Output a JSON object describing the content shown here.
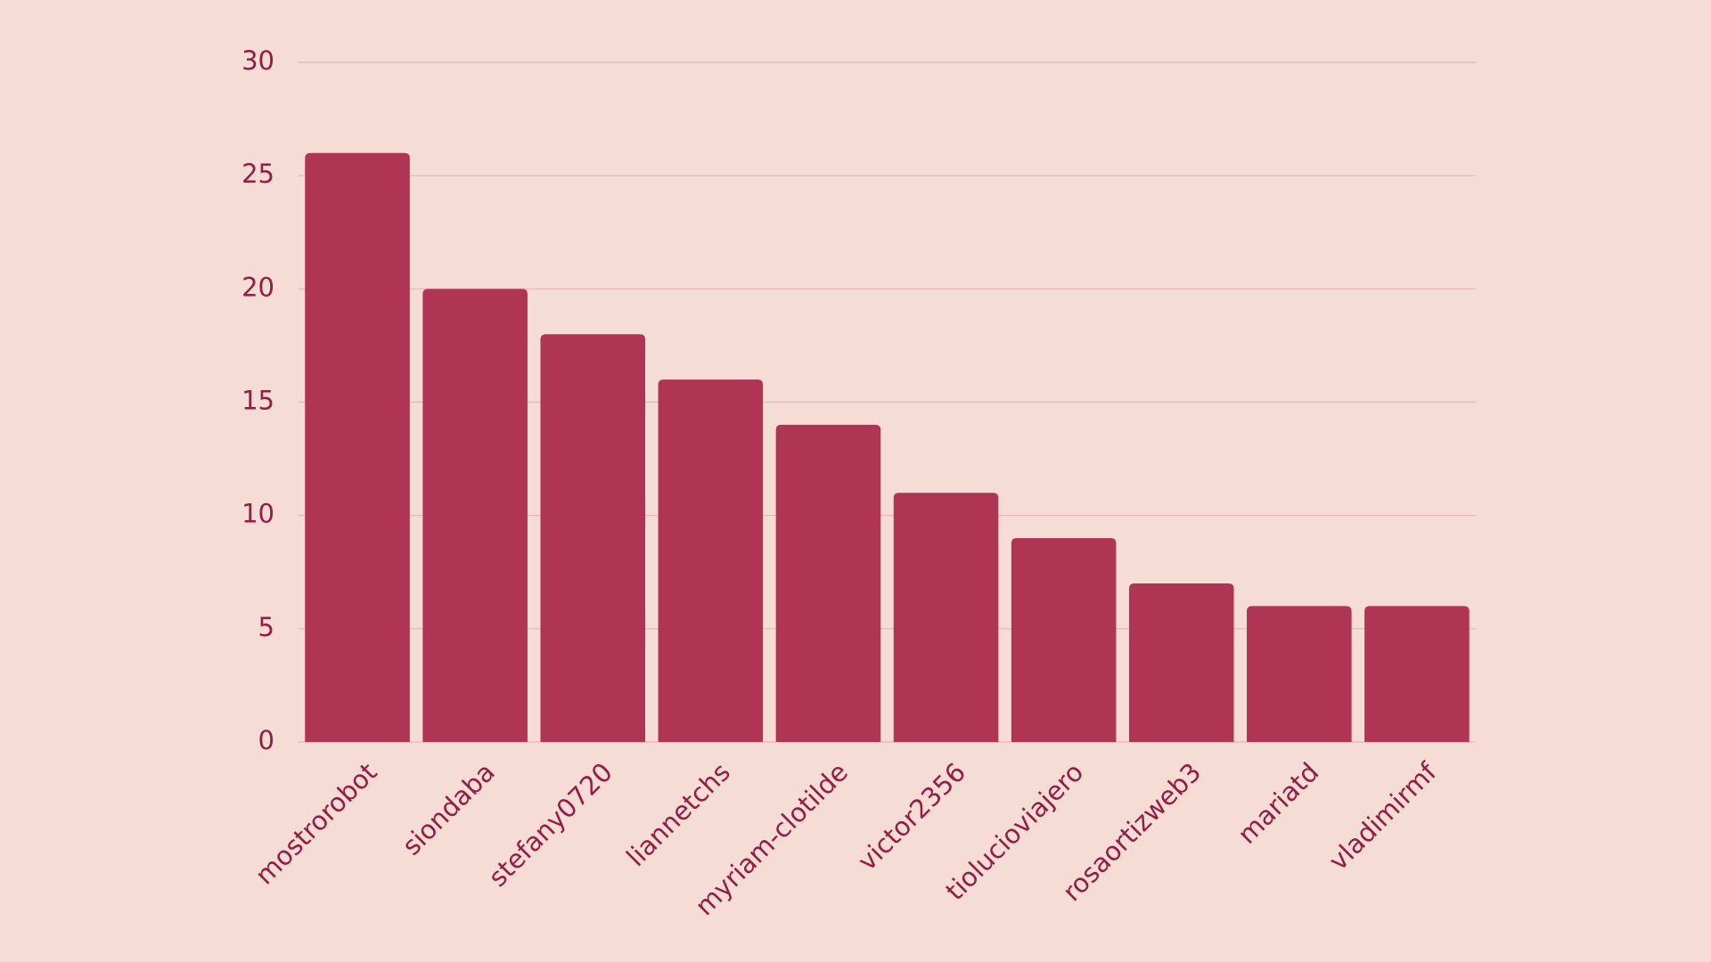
{
  "chart_data": {
    "type": "bar",
    "categories": [
      "mostrorobot",
      "siondaba",
      "stefany0720",
      "liannetchs",
      "myriam-clotilde",
      "victor2356",
      "tiolucioviajero",
      "rosaortizweb3",
      "mariatd",
      "vladimirmf"
    ],
    "values": [
      26,
      20,
      18,
      16,
      14,
      11,
      9,
      7,
      6,
      6
    ],
    "color": "#b03453",
    "ylim": [
      0,
      30
    ],
    "yticks": [
      0,
      5,
      10,
      15,
      20,
      25,
      30
    ],
    "grid": true
  }
}
